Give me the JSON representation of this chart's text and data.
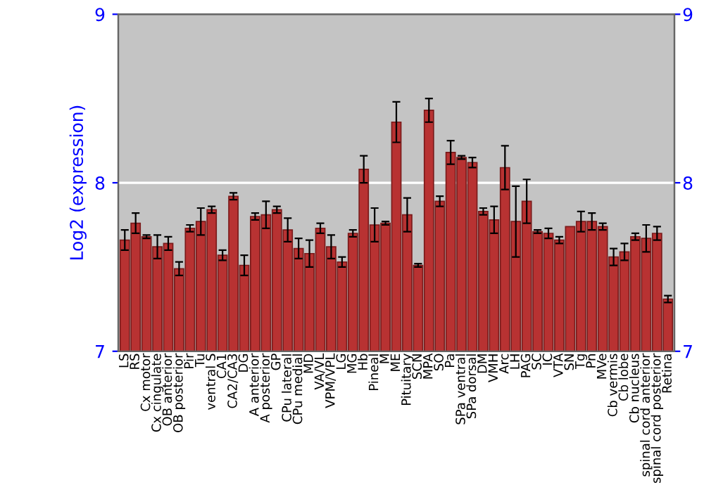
{
  "chart_data": {
    "type": "bar",
    "ylabel": "Log2 (expression)",
    "categories": [
      "LS",
      "RS",
      "Cx motor",
      "Cx cingulate",
      "OB anterior",
      "OB posterior",
      "Pir",
      "Tu",
      "ventral S",
      "CA1",
      "CA2/CA3",
      "DG",
      "A anterior",
      "A posterior",
      "GP",
      "CPu lateral",
      "CPu medial",
      "MD",
      "VA/VL",
      "VPM/VPL",
      "LG",
      "MG",
      "Hb",
      "Pineal",
      "M",
      "ME",
      "Pituitary",
      "SCN",
      "MPA",
      "SO",
      "Pa",
      "SPa ventral",
      "SPa dorsal",
      "DM",
      "VMH",
      "Arc",
      "LH",
      "PAG",
      "SC",
      "IC",
      "VTA",
      "SN",
      "Tg",
      "Pn",
      "MVe",
      "Cb vermis",
      "Cb lobe",
      "Cb nucleus",
      "spinal cord anterior",
      "spinal cord posterior",
      "Retina"
    ],
    "values": [
      7.66,
      7.76,
      7.68,
      7.62,
      7.64,
      7.49,
      7.73,
      7.77,
      7.84,
      7.57,
      7.92,
      7.51,
      7.8,
      7.81,
      7.84,
      7.72,
      7.61,
      7.58,
      7.73,
      7.62,
      7.53,
      7.7,
      8.08,
      7.75,
      7.76,
      8.36,
      7.81,
      7.51,
      8.43,
      7.89,
      8.18,
      8.15,
      8.12,
      7.83,
      7.78,
      8.09,
      7.77,
      7.89,
      7.71,
      7.7,
      7.66,
      7.74,
      7.77,
      7.77,
      7.74,
      7.56,
      7.59,
      7.68,
      7.67,
      7.7,
      7.31
    ],
    "errors": [
      0.06,
      0.06,
      0.01,
      0.07,
      0.04,
      0.04,
      0.02,
      0.08,
      0.02,
      0.03,
      0.02,
      0.06,
      0.02,
      0.08,
      0.02,
      0.07,
      0.06,
      0.08,
      0.03,
      0.07,
      0.03,
      0.02,
      0.08,
      0.1,
      0.01,
      0.12,
      0.1,
      0.01,
      0.07,
      0.03,
      0.07,
      0.01,
      0.03,
      0.02,
      0.08,
      0.13,
      0.21,
      0.13,
      0.01,
      0.03,
      0.02,
      null,
      0.06,
      0.05,
      0.02,
      0.05,
      0.05,
      0.02,
      0.08,
      0.04,
      0.02
    ],
    "color": "#b83232",
    "ylim": [
      7,
      9
    ],
    "yticks": [
      7,
      8,
      9
    ],
    "y2lim": [
      7,
      9
    ],
    "y2ticks": [
      7,
      8,
      9
    ],
    "grid": "y"
  }
}
